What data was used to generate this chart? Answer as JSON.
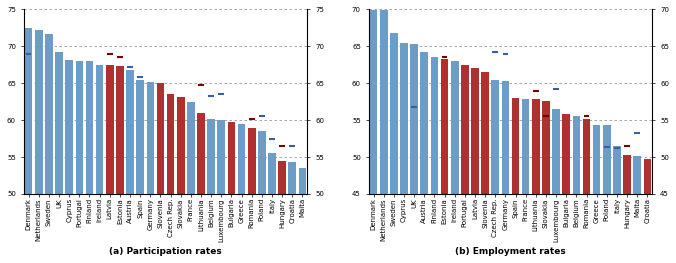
{
  "part_countries": [
    "Denmark",
    "Netherlands",
    "Sweden",
    "UK",
    "Cyprus",
    "Portugal",
    "Finland",
    "Ireland",
    "Latvia",
    "Estonia",
    "Austria",
    "Spain",
    "Germany",
    "Slovenia",
    "Czech Rep.",
    "Slovakia",
    "France",
    "Lithuania",
    "Belgium",
    "Luxembourg",
    "Bulgaria",
    "Greece",
    "Romania",
    "Poland",
    "Italy",
    "Hungary",
    "Croatia",
    "Malta"
  ],
  "part_values": [
    72.5,
    72.2,
    71.7,
    69.3,
    68.1,
    68.0,
    68.0,
    67.5,
    67.5,
    67.3,
    66.8,
    65.5,
    65.2,
    65.0,
    63.5,
    63.2,
    62.5,
    61.0,
    60.2,
    60.0,
    59.8,
    59.5,
    58.9,
    58.5,
    55.5,
    54.5,
    54.3,
    53.5
  ],
  "part_colors": [
    "blue",
    "blue",
    "blue",
    "blue",
    "blue",
    "blue",
    "blue",
    "blue",
    "red",
    "red",
    "blue",
    "blue",
    "blue",
    "red",
    "red",
    "red",
    "blue",
    "red",
    "blue",
    "blue",
    "red",
    "blue",
    "red",
    "blue",
    "blue",
    "red",
    "blue",
    "blue"
  ],
  "part_markers": {
    "Denmark": 69.0,
    "Latvia": 69.0,
    "Estonia": 68.5,
    "Austria": 67.2,
    "Spain": 65.8,
    "Lithuania": 64.8,
    "Belgium": 63.3,
    "Luxembourg": 63.5,
    "Romania": 60.2,
    "Italy": 57.5,
    "Hungary": 56.5,
    "Poland": 60.5,
    "Croatia": 56.5
  },
  "emp_countries": [
    "Denmark",
    "Netherlands",
    "Sweden",
    "Cyprus",
    "UK",
    "Austria",
    "Finland",
    "Estonia",
    "Ireland",
    "Portugal",
    "Latvia",
    "Slovenia",
    "Czech Rep.",
    "Germany",
    "Spain",
    "France",
    "Lithuania",
    "Slovakia",
    "Luxembourg",
    "Bulgaria",
    "Belgium",
    "Romania",
    "Greece",
    "Poland",
    "Italy",
    "Hungary",
    "Malta",
    "Croatia"
  ],
  "emp_values": [
    69.9,
    69.9,
    66.8,
    65.5,
    65.3,
    64.3,
    63.5,
    63.3,
    63.0,
    62.5,
    62.0,
    61.5,
    60.5,
    60.3,
    58.0,
    57.9,
    57.8,
    57.6,
    56.5,
    55.8,
    55.5,
    55.2,
    54.3,
    54.3,
    51.5,
    50.3,
    50.2,
    49.8
  ],
  "emp_colors": [
    "blue",
    "blue",
    "blue",
    "blue",
    "blue",
    "blue",
    "blue",
    "red",
    "blue",
    "red",
    "red",
    "red",
    "blue",
    "blue",
    "red",
    "blue",
    "red",
    "red",
    "blue",
    "red",
    "blue",
    "red",
    "blue",
    "blue",
    "blue",
    "red",
    "blue",
    "red"
  ],
  "emp_markers": {
    "Estonia": 63.5,
    "Czech Rep.": 64.3,
    "Lithuania": 59.0,
    "Germany": 64.0,
    "Luxembourg": 59.2,
    "Poland": 51.3,
    "Malta": 53.3,
    "Hungary": 51.5,
    "UK": 56.8,
    "Slovakia": 55.5,
    "Romania": 55.5,
    "Italy": 51.2
  },
  "bar_color_blue": "#6b9dc8",
  "bar_color_red": "#b03030",
  "marker_color_blue": "#3a5fa0",
  "marker_color_red": "#7a0000",
  "part_ylim": [
    50,
    75
  ],
  "part_yticks": [
    50,
    55,
    60,
    65,
    70,
    75
  ],
  "emp_ylim": [
    45,
    70
  ],
  "emp_yticks": [
    45,
    50,
    55,
    60,
    65,
    70
  ],
  "title_a": "(a) Participation rates",
  "title_b": "(b) Employment rates",
  "background": "#ffffff",
  "tick_fontsize": 5.0,
  "label_fontsize": 6.5
}
